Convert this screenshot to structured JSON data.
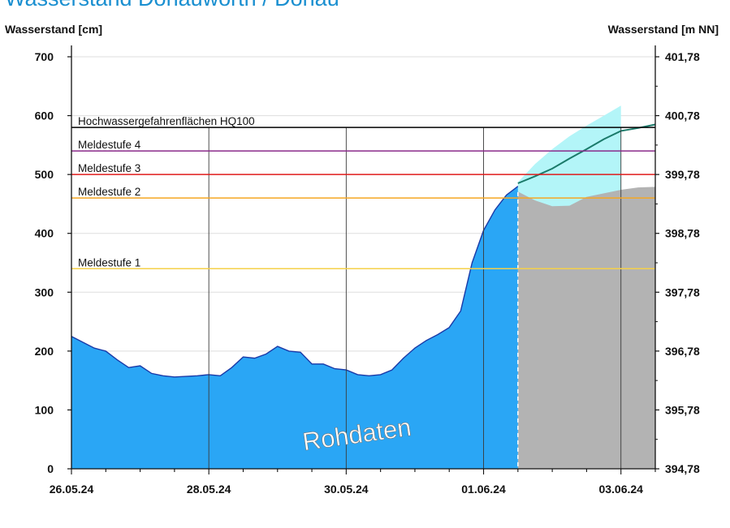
{
  "chart_title": "Wasserstand Donauwörth / Donau",
  "chart_data": {
    "type": "area",
    "title": "Wasserstand Donauwörth / Donau",
    "ylabel_left": "Wasserstand [cm]",
    "ylabel_right": "Wasserstand [m NN]",
    "ylim": [
      0,
      700
    ],
    "xlim": [
      "2024-05-26 00:00",
      "2024-06-03 12:00"
    ],
    "grid": true,
    "y_ticks": [
      "0",
      "100",
      "200",
      "300",
      "400",
      "500",
      "600",
      "700"
    ],
    "y_ticks_right": [
      "394,78",
      "395,78",
      "396,78",
      "397,78",
      "398,78",
      "399,78",
      "400,78",
      "401,78"
    ],
    "x_ticks": [
      {
        "t": "2024-05-26 00:00",
        "label": "26.05.24"
      },
      {
        "t": "2024-05-28 00:00",
        "label": "28.05.24"
      },
      {
        "t": "2024-05-30 00:00",
        "label": "30.05.24"
      },
      {
        "t": "2024-06-01 00:00",
        "label": "01.06.24"
      },
      {
        "t": "2024-06-03 00:00",
        "label": "03.06.24"
      }
    ],
    "thresholds": [
      {
        "label": "Hochwassergefahrenflächen HQ100",
        "value": 580,
        "color": "#000000"
      },
      {
        "label": "Meldestufe 4",
        "value": 540,
        "color": "#8a2a8a"
      },
      {
        "label": "Meldestufe 3",
        "value": 500,
        "color": "#e01b1b"
      },
      {
        "label": "Meldestufe 2",
        "value": 460,
        "color": "#f5a623"
      },
      {
        "label": "Meldestufe 1",
        "value": 340,
        "color": "#f5d04a"
      }
    ],
    "annotation": "Rohdaten",
    "forecast_start": "2024-06-01 12:00",
    "measured": {
      "name": "Rohdaten",
      "color": "#2aa6f5",
      "x": [
        "2024-05-26 00:00",
        "2024-05-26 04:00",
        "2024-05-26 08:00",
        "2024-05-26 12:00",
        "2024-05-26 16:00",
        "2024-05-26 20:00",
        "2024-05-27 00:00",
        "2024-05-27 04:00",
        "2024-05-27 08:00",
        "2024-05-27 12:00",
        "2024-05-27 16:00",
        "2024-05-27 20:00",
        "2024-05-28 00:00",
        "2024-05-28 04:00",
        "2024-05-28 08:00",
        "2024-05-28 12:00",
        "2024-05-28 16:00",
        "2024-05-28 20:00",
        "2024-05-29 00:00",
        "2024-05-29 04:00",
        "2024-05-29 08:00",
        "2024-05-29 12:00",
        "2024-05-29 16:00",
        "2024-05-29 20:00",
        "2024-05-30 00:00",
        "2024-05-30 04:00",
        "2024-05-30 08:00",
        "2024-05-30 12:00",
        "2024-05-30 16:00",
        "2024-05-30 20:00",
        "2024-05-31 00:00",
        "2024-05-31 04:00",
        "2024-05-31 08:00",
        "2024-05-31 12:00",
        "2024-05-31 16:00",
        "2024-05-31 20:00",
        "2024-06-01 00:00",
        "2024-06-01 04:00",
        "2024-06-01 08:00",
        "2024-06-01 12:00"
      ],
      "y": [
        225,
        215,
        205,
        200,
        185,
        172,
        175,
        162,
        158,
        156,
        157,
        158,
        160,
        158,
        172,
        190,
        188,
        195,
        208,
        200,
        198,
        178,
        178,
        170,
        168,
        160,
        158,
        160,
        168,
        188,
        205,
        218,
        228,
        240,
        268,
        350,
        405,
        440,
        465,
        480
      ]
    },
    "forecast_median": {
      "color": "#1a7a6a",
      "x": [
        "2024-06-01 12:00",
        "2024-06-01 18:00",
        "2024-06-02 00:00",
        "2024-06-02 06:00",
        "2024-06-02 12:00",
        "2024-06-02 18:00",
        "2024-06-03 00:00",
        "2024-06-03 06:00",
        "2024-06-03 12:00"
      ],
      "y": [
        485,
        497,
        510,
        527,
        543,
        560,
        574,
        579,
        585
      ]
    },
    "forecast_upper": {
      "color": "#b3f5f8",
      "x": [
        "2024-06-01 12:00",
        "2024-06-01 18:00",
        "2024-06-02 00:00",
        "2024-06-02 06:00",
        "2024-06-02 12:00",
        "2024-06-02 18:00",
        "2024-06-03 00:00"
      ],
      "y": [
        487,
        518,
        543,
        565,
        583,
        600,
        617
      ]
    },
    "forecast_lower": {
      "color": "#b3b3b3",
      "x": [
        "2024-06-01 12:00",
        "2024-06-01 18:00",
        "2024-06-02 00:00",
        "2024-06-02 06:00",
        "2024-06-02 12:00",
        "2024-06-02 18:00",
        "2024-06-03 00:00",
        "2024-06-03 06:00",
        "2024-06-03 12:00"
      ],
      "y": [
        471,
        456,
        446,
        447,
        462,
        468,
        474,
        478,
        479
      ]
    }
  }
}
